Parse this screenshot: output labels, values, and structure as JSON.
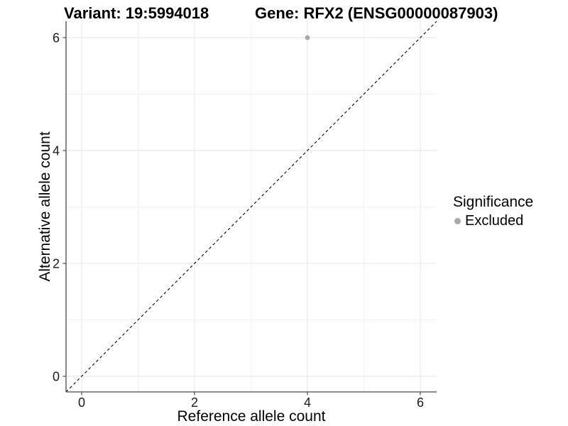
{
  "titles": {
    "variant": "Variant: 19:5994018",
    "gene": "Gene: RFX2 (ENSG00000087903)"
  },
  "legend": {
    "title": "Significance",
    "items": [
      {
        "label": "Excluded",
        "color": "#a9a9a9"
      }
    ]
  },
  "chart_data": {
    "type": "scatter",
    "title_left": "Variant: 19:5994018",
    "title_right": "Gene: RFX2 (ENSG00000087903)",
    "xlabel": "Reference allele count",
    "ylabel": "Alternative allele count",
    "xlim": [
      -0.277,
      6.29
    ],
    "ylim": [
      -0.277,
      6.29
    ],
    "x_ticks": [
      0,
      2,
      4,
      6
    ],
    "y_ticks": [
      0,
      2,
      4,
      6
    ],
    "x_minor_ticks": [
      1,
      3,
      5
    ],
    "y_minor_ticks": [
      1,
      3,
      5
    ],
    "grid": true,
    "legend_title": "Significance",
    "legend_position": "right",
    "series": [
      {
        "name": "Excluded",
        "color": "#a9a9a9",
        "points": [
          {
            "x": 4,
            "y": 6
          }
        ]
      }
    ],
    "reference_line": {
      "kind": "identity y=x",
      "style": "dashed",
      "color": "#000000"
    }
  },
  "colors": {
    "background": "#ffffff",
    "grid_major": "#e7e7e7",
    "grid_minor": "#f1f1f1",
    "axis_line": "#4a4a4a",
    "tick_label": "#1a1a1a",
    "axis_title": "#000000",
    "point": "#a9a9a9"
  }
}
